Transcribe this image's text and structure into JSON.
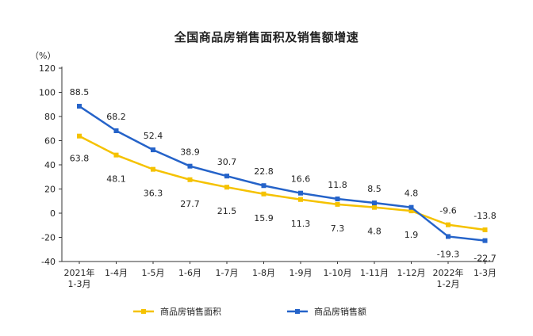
{
  "chart_data": {
    "type": "line",
    "title": "全国商品房销售面积及销售额增速",
    "y_unit": "（%）",
    "categories": [
      [
        "2021年",
        "1-3月"
      ],
      [
        "1-4月"
      ],
      [
        "1-5月"
      ],
      [
        "1-6月"
      ],
      [
        "1-7月"
      ],
      [
        "1-8月"
      ],
      [
        "1-9月"
      ],
      [
        "1-10月"
      ],
      [
        "1-11月"
      ],
      [
        "1-12月"
      ],
      [
        "2022年",
        "1-2月"
      ],
      [
        "1-3月"
      ]
    ],
    "y_ticks": [
      -40,
      -20,
      0,
      20,
      40,
      60,
      80,
      100,
      120
    ],
    "ylim": [
      -40,
      120
    ],
    "legend_position": "bottom",
    "series": [
      {
        "name": "商品房销售面积",
        "color": "#f5c200",
        "values": [
          63.8,
          48.1,
          36.3,
          27.7,
          21.5,
          15.9,
          11.3,
          7.3,
          4.8,
          1.9,
          -9.6,
          -13.8
        ],
        "labels": [
          "63.8",
          "48.1",
          "36.3",
          "27.7",
          "21.5",
          "15.9",
          "11.3",
          "7.3",
          "4.8",
          "1.9",
          "-9.6",
          "-13.8"
        ]
      },
      {
        "name": "商品房销售额",
        "color": "#2563c9",
        "values": [
          88.5,
          68.2,
          52.4,
          38.9,
          30.7,
          22.8,
          16.6,
          11.8,
          8.5,
          4.8,
          -19.3,
          -22.7
        ],
        "labels": [
          "88.5",
          "68.2",
          "52.4",
          "38.9",
          "30.7",
          "22.8",
          "16.6",
          "11.8",
          "8.5",
          "4.8",
          "-19.3",
          "-22.7"
        ]
      }
    ]
  }
}
